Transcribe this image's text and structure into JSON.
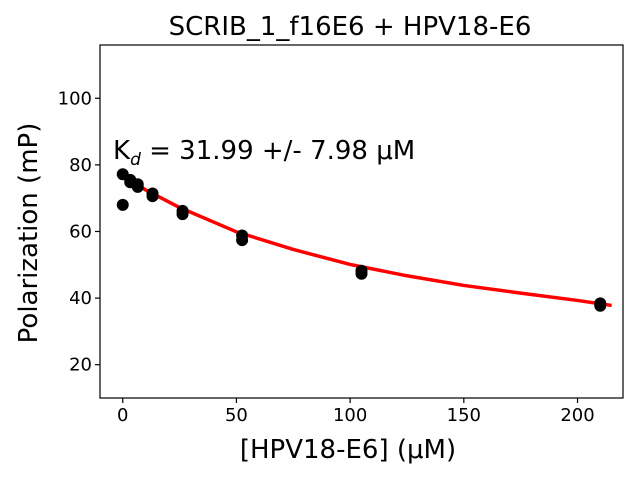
{
  "chart_data": {
    "type": "scatter",
    "title": "SCRIB_1_f16E6 + HPV18-E6",
    "xlabel": "[HPV18-E6] (μM)",
    "ylabel": "Polarization (mP)",
    "xlim": [
      -10,
      220
    ],
    "ylim": [
      10,
      116
    ],
    "xticks": [
      0,
      50,
      100,
      150,
      200
    ],
    "yticks": [
      20,
      40,
      60,
      80,
      100
    ],
    "grid": false,
    "annotation": {
      "prefix": "K",
      "subscript": "d",
      "text": " = 31.99 +/- 7.98 μM"
    },
    "series": [
      {
        "kind": "points",
        "color": "#000000",
        "x": [
          0,
          0,
          3.3,
          3.3,
          6.6,
          6.6,
          13.1,
          13.1,
          26.3,
          26.3,
          52.5,
          52.5,
          105,
          105,
          210,
          210
        ],
        "y": [
          77.2,
          68,
          75.5,
          74.8,
          74.2,
          73.4,
          71.4,
          70.6,
          66.2,
          65.2,
          58.8,
          57.4,
          48.2,
          47.3,
          38.4,
          37.7
        ]
      },
      {
        "kind": "fit",
        "color": "#ff0000",
        "x": [
          0,
          10,
          25,
          50,
          75,
          100,
          125,
          150,
          175,
          200,
          215
        ],
        "y": [
          77,
          72.5,
          67.2,
          59.9,
          54.6,
          50.1,
          46.7,
          43.8,
          41.5,
          39.3,
          37.8
        ]
      }
    ]
  }
}
